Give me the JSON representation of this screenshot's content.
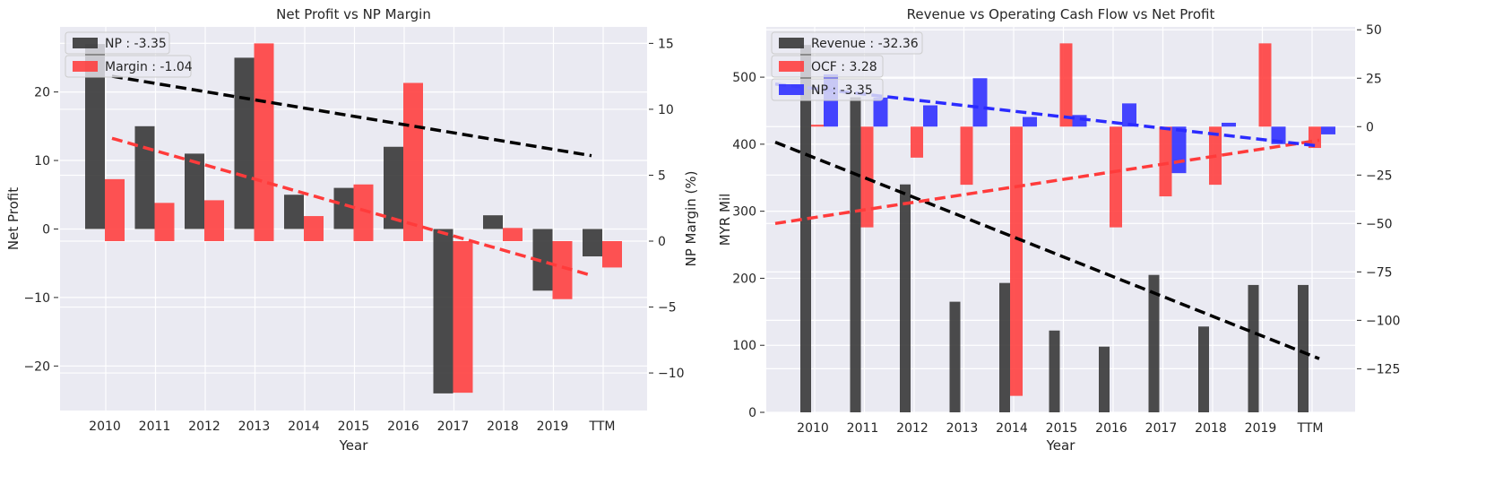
{
  "chart_data": [
    {
      "type": "bar",
      "title": "Net Profit vs NP Margin",
      "xlabel": "Year",
      "ylabel": "Net Profit",
      "ylabel_right": "NP Margin (%)",
      "categories": [
        "2010",
        "2011",
        "2012",
        "2013",
        "2014",
        "2015",
        "2016",
        "2017",
        "2018",
        "2019",
        "TTM"
      ],
      "ylim": [
        -26.5,
        29.5
      ],
      "ylim_right": [
        -12.85,
        16.25
      ],
      "yticks": [
        -20,
        -10,
        0,
        10,
        20
      ],
      "yticks_right": [
        -10,
        -5,
        0,
        5,
        10,
        15
      ],
      "grid": true,
      "legend_position": "top-left",
      "series": [
        {
          "name": "NP : -3.35",
          "axis": "left",
          "color": "#333333",
          "values": [
            27,
            15,
            11,
            25,
            5,
            6,
            12,
            -24,
            2,
            -9,
            -4
          ],
          "trend": [
            22.3,
            10.7
          ]
        },
        {
          "name": "Margin : -1.04",
          "axis": "right",
          "color": "#ff3b3b",
          "values": [
            4.7,
            2.9,
            3.1,
            15,
            1.9,
            4.3,
            12,
            -11.5,
            1,
            -4.4,
            -2
          ],
          "trend": [
            7.8,
            -2.6
          ]
        }
      ]
    },
    {
      "type": "bar",
      "title": "Revenue vs Operating Cash Flow vs Net Profit",
      "xlabel": "Year",
      "ylabel": "MYR Mil",
      "categories": [
        "2010",
        "2011",
        "2012",
        "2013",
        "2014",
        "2015",
        "2016",
        "2017",
        "2018",
        "2019",
        "TTM"
      ],
      "ylim": [
        0,
        575
      ],
      "ylim_right": [
        -147.5,
        51.5
      ],
      "yticks": [
        0,
        100,
        200,
        300,
        400,
        500
      ],
      "yticks_right": [
        -125,
        -100,
        -75,
        -50,
        -25,
        0,
        25,
        50
      ],
      "grid": true,
      "legend_position": "top-left",
      "series": [
        {
          "name": "Revenue : -32.36",
          "axis": "left",
          "color": "#333333",
          "values": [
            548,
            470,
            340,
            165,
            193,
            122,
            98,
            205,
            128,
            190,
            190
          ],
          "trend": [
            403,
            80
          ]
        },
        {
          "name": "OCF : 3.28",
          "axis": "right",
          "color": "#ff3b3b",
          "values": [
            1,
            -52,
            -16,
            -30,
            -139,
            43,
            -52,
            -36,
            -30,
            43,
            -11
          ],
          "trend": [
            -50,
            -7
          ]
        },
        {
          "name": "NP : -3.35",
          "axis": "right",
          "color": "#2b2bff",
          "values": [
            27,
            15,
            11,
            25,
            5,
            6,
            12,
            -24,
            2,
            -9,
            -4
          ],
          "trend": [
            22,
            -10
          ]
        }
      ]
    }
  ]
}
